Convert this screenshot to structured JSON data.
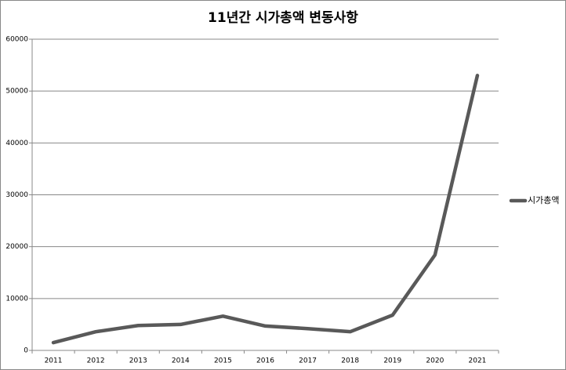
{
  "chart_data": {
    "type": "line",
    "title": "11년간 시가총액 변동사항",
    "categories": [
      "2011",
      "2012",
      "2013",
      "2014",
      "2015",
      "2016",
      "2017",
      "2018",
      "2019",
      "2020",
      "2021"
    ],
    "series": [
      {
        "name": "시가총액",
        "color": "#595959",
        "values": [
          1500,
          3600,
          4800,
          5000,
          6600,
          4700,
          4200,
          3600,
          6800,
          18400,
          53000
        ]
      }
    ],
    "ylim": [
      0,
      60000
    ],
    "yticks": [
      0,
      10000,
      20000,
      30000,
      40000,
      50000,
      60000
    ],
    "grid": true,
    "legend": "right"
  }
}
